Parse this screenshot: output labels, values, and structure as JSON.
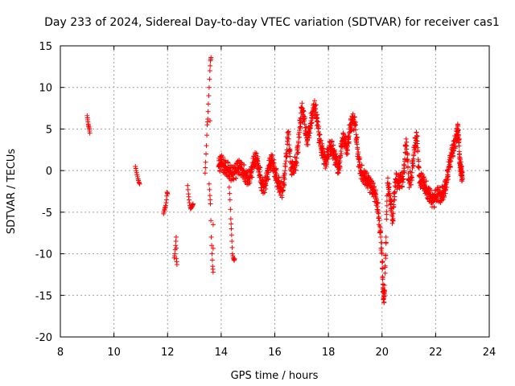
{
  "chart_data": {
    "type": "scatter",
    "title": "Day 233 of 2024, Sidereal Day-to-day VTEC variation (SDTVAR) for receiver cas1",
    "xlabel": "GPS time / hours",
    "ylabel": "SDTVAR / TECUs",
    "xlim": [
      8,
      24
    ],
    "ylim": [
      -20,
      15
    ],
    "xticks": [
      "8",
      "10",
      "12",
      "14",
      "16",
      "18",
      "20",
      "22",
      "24"
    ],
    "yticks": [
      "15",
      "10",
      "5",
      "0",
      "-5",
      "-10",
      "-15",
      "-20"
    ],
    "grid": true,
    "marker": "plus",
    "color": "#ff0000",
    "series": [
      {
        "name": "SDTVAR",
        "segments": [
          {
            "x0": 9.0,
            "x1": 9.1,
            "points": [
              [
                9.0,
                6.6
              ],
              [
                9.02,
                6.1
              ],
              [
                9.04,
                5.6
              ],
              [
                9.06,
                5.3
              ],
              [
                9.08,
                5.0
              ],
              [
                9.1,
                4.5
              ]
            ]
          },
          {
            "x0": 10.8,
            "x1": 11.0,
            "points": [
              [
                10.8,
                0.5
              ],
              [
                10.83,
                0.0
              ],
              [
                10.86,
                -0.5
              ],
              [
                10.9,
                -1.0
              ],
              [
                10.93,
                -1.4
              ],
              [
                10.96,
                -1.6
              ]
            ]
          },
          {
            "x0": 11.85,
            "x1": 12.0,
            "points": [
              [
                11.85,
                -5.2
              ],
              [
                11.88,
                -4.8
              ],
              [
                11.9,
                -4.5
              ],
              [
                11.93,
                -4.2
              ],
              [
                11.96,
                -3.5
              ],
              [
                11.98,
                -2.6
              ],
              [
                12.0,
                -2.8
              ]
            ]
          },
          {
            "x0": 12.25,
            "x1": 12.35,
            "points": [
              [
                12.25,
                -10.5
              ],
              [
                12.27,
                -10.0
              ],
              [
                12.3,
                -9.0
              ],
              [
                12.32,
                -8.0
              ],
              [
                12.33,
                -10.6
              ],
              [
                12.35,
                -11.3
              ]
            ]
          },
          {
            "x0": 12.75,
            "x1": 12.95,
            "points": [
              [
                12.75,
                -1.8
              ],
              [
                12.78,
                -2.8
              ],
              [
                12.8,
                -3.5
              ],
              [
                12.83,
                -4.2
              ],
              [
                12.86,
                -4.6
              ],
              [
                12.9,
                -4.4
              ],
              [
                12.93,
                -4.2
              ],
              [
                12.95,
                -4.0
              ]
            ]
          },
          {
            "x0": 13.4,
            "x1": 13.7,
            "points": [
              [
                13.4,
                -0.3
              ],
              [
                13.42,
                1.0
              ],
              [
                13.45,
                3.0
              ],
              [
                13.48,
                5.5
              ],
              [
                13.5,
                6.2
              ],
              [
                13.52,
                8.0
              ],
              [
                13.55,
                10.0
              ],
              [
                13.58,
                12.0
              ],
              [
                13.6,
                13.2
              ],
              [
                13.62,
                13.6
              ],
              [
                13.55,
                -1.6
              ],
              [
                13.58,
                -3.0
              ],
              [
                13.6,
                -4.0
              ],
              [
                13.63,
                -8.0
              ],
              [
                13.66,
                -10.0
              ],
              [
                13.68,
                -11.5
              ],
              [
                13.7,
                -12.2
              ],
              [
                13.7,
                -6.5
              ]
            ]
          },
          {
            "x0": 14.3,
            "x1": 14.5,
            "points": [
              [
                14.3,
                -2.0
              ],
              [
                14.33,
                -3.5
              ],
              [
                14.36,
                -5.8
              ],
              [
                14.38,
                -7.0
              ],
              [
                14.4,
                -8.5
              ],
              [
                14.42,
                -10.0
              ],
              [
                14.45,
                -10.5
              ],
              [
                14.48,
                -10.8
              ],
              [
                14.5,
                -10.6
              ]
            ]
          },
          {
            "x0": 13.9,
            "x1": 23.0,
            "note": "dense main band",
            "points": [
              [
                13.9,
                0.5
              ],
              [
                14.0,
                1.0
              ],
              [
                14.1,
                0.6
              ],
              [
                14.2,
                0.3
              ],
              [
                14.3,
                0.0
              ],
              [
                14.4,
                -0.5
              ],
              [
                14.5,
                -0.3
              ],
              [
                14.6,
                0.2
              ],
              [
                14.7,
                0.5
              ],
              [
                14.8,
                0.1
              ],
              [
                14.9,
                -0.5
              ],
              [
                15.0,
                -1.0
              ],
              [
                15.1,
                -0.6
              ],
              [
                15.2,
                0.8
              ],
              [
                15.3,
                1.5
              ],
              [
                15.4,
                0.5
              ],
              [
                15.5,
                -1.5
              ],
              [
                15.6,
                -2.0
              ],
              [
                15.7,
                -1.0
              ],
              [
                15.8,
                0.6
              ],
              [
                15.9,
                1.2
              ],
              [
                16.0,
                0.0
              ],
              [
                16.1,
                -1.2
              ],
              [
                16.2,
                -2.0
              ],
              [
                16.3,
                -2.5
              ],
              [
                16.4,
                0.5
              ],
              [
                16.5,
                4.5
              ],
              [
                16.6,
                0.3
              ],
              [
                16.7,
                0.5
              ],
              [
                16.8,
                1.0
              ],
              [
                16.9,
                4.0
              ],
              [
                17.0,
                7.5
              ],
              [
                17.1,
                6.0
              ],
              [
                17.2,
                3.5
              ],
              [
                17.3,
                5.0
              ],
              [
                17.4,
                7.0
              ],
              [
                17.5,
                7.8
              ],
              [
                17.6,
                5.5
              ],
              [
                17.7,
                3.0
              ],
              [
                17.8,
                2.0
              ],
              [
                17.9,
                1.0
              ],
              [
                18.0,
                2.5
              ],
              [
                18.1,
                3.0
              ],
              [
                18.2,
                2.0
              ],
              [
                18.3,
                1.0
              ],
              [
                18.4,
                0.0
              ],
              [
                18.5,
                3.5
              ],
              [
                18.6,
                4.0
              ],
              [
                18.7,
                2.5
              ],
              [
                18.8,
                5.0
              ],
              [
                18.9,
                6.0
              ],
              [
                19.0,
                5.5
              ],
              [
                19.1,
                2.0
              ],
              [
                19.2,
                0.0
              ],
              [
                19.3,
                -0.5
              ],
              [
                19.4,
                -1.0
              ],
              [
                19.5,
                -1.5
              ],
              [
                19.6,
                -2.0
              ],
              [
                19.7,
                -2.5
              ],
              [
                19.8,
                -3.5
              ],
              [
                19.9,
                -6.0
              ],
              [
                20.0,
                -10.0
              ],
              [
                20.05,
                -15.5
              ],
              [
                20.1,
                -14.5
              ],
              [
                20.2,
                -1.5
              ],
              [
                20.3,
                -3.0
              ],
              [
                20.4,
                -6.0
              ],
              [
                20.5,
                -1.0
              ],
              [
                20.6,
                -1.5
              ],
              [
                20.7,
                -1.2
              ],
              [
                20.8,
                -1.0
              ],
              [
                20.9,
                3.8
              ],
              [
                21.0,
                -1.2
              ],
              [
                21.1,
                -0.8
              ],
              [
                21.2,
                2.5
              ],
              [
                21.3,
                4.2
              ],
              [
                21.4,
                -1.5
              ],
              [
                21.5,
                -1.0
              ],
              [
                21.6,
                -1.8
              ],
              [
                21.7,
                -2.5
              ],
              [
                21.8,
                -3.0
              ],
              [
                21.9,
                -3.8
              ],
              [
                22.0,
                -3.2
              ],
              [
                22.1,
                -2.8
              ],
              [
                22.2,
                -3.0
              ],
              [
                22.3,
                -2.5
              ],
              [
                22.4,
                -1.5
              ],
              [
                22.5,
                0.5
              ],
              [
                22.6,
                2.0
              ],
              [
                22.7,
                3.0
              ],
              [
                22.8,
                4.7
              ],
              [
                22.85,
                4.9
              ],
              [
                22.9,
                1.0
              ],
              [
                22.95,
                0.0
              ],
              [
                23.0,
                -1.0
              ]
            ]
          }
        ]
      }
    ]
  }
}
